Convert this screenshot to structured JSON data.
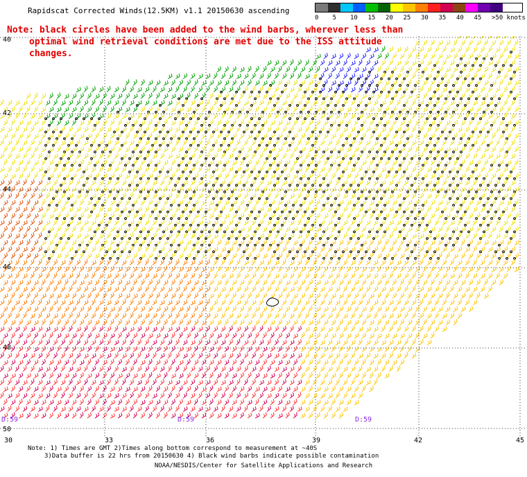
{
  "title": "Rapidscat Corrected Winds(12.5KM) v1.1 20150630 ascending",
  "note": {
    "line1": "Note: black circles have been added to the wind barbs, wherever less than",
    "line2": "optimal wind retrieval conditions are met due to the ISS attitude changes."
  },
  "legend": {
    "unit": "knots",
    "labels": [
      "0",
      "5",
      "10",
      "15",
      "20",
      "25",
      "30",
      "35",
      "40",
      "45",
      ">50 knots"
    ],
    "colors": [
      "#7a7a7a",
      "#2f2f2f",
      "#00c8ff",
      "#0060ff",
      "#00c000",
      "#006400",
      "#ffff00",
      "#ffc400",
      "#ff7f00",
      "#ff2020",
      "#d00050",
      "#8b4513",
      "#ff00ff",
      "#7000b0",
      "#400080"
    ]
  },
  "axes": {
    "lon_ticks": [
      "30",
      "33",
      "36",
      "39",
      "42",
      "45"
    ],
    "lat_ticks": [
      "40",
      "42",
      "44",
      "46",
      "48",
      "50"
    ]
  },
  "time_labels": [
    "D:59",
    "D:59",
    "D:59"
  ],
  "footer": {
    "line1": "Note: 1) Times are GMT 2)Times along bottom correspond to measurement at ~40S",
    "line2": "3)Data buffer is 22 hrs from 20150630 4) Black wind barbs indicate possible contamination",
    "line3": "NOAA/NESDIS/Center for Satellite Applications and Research"
  }
}
